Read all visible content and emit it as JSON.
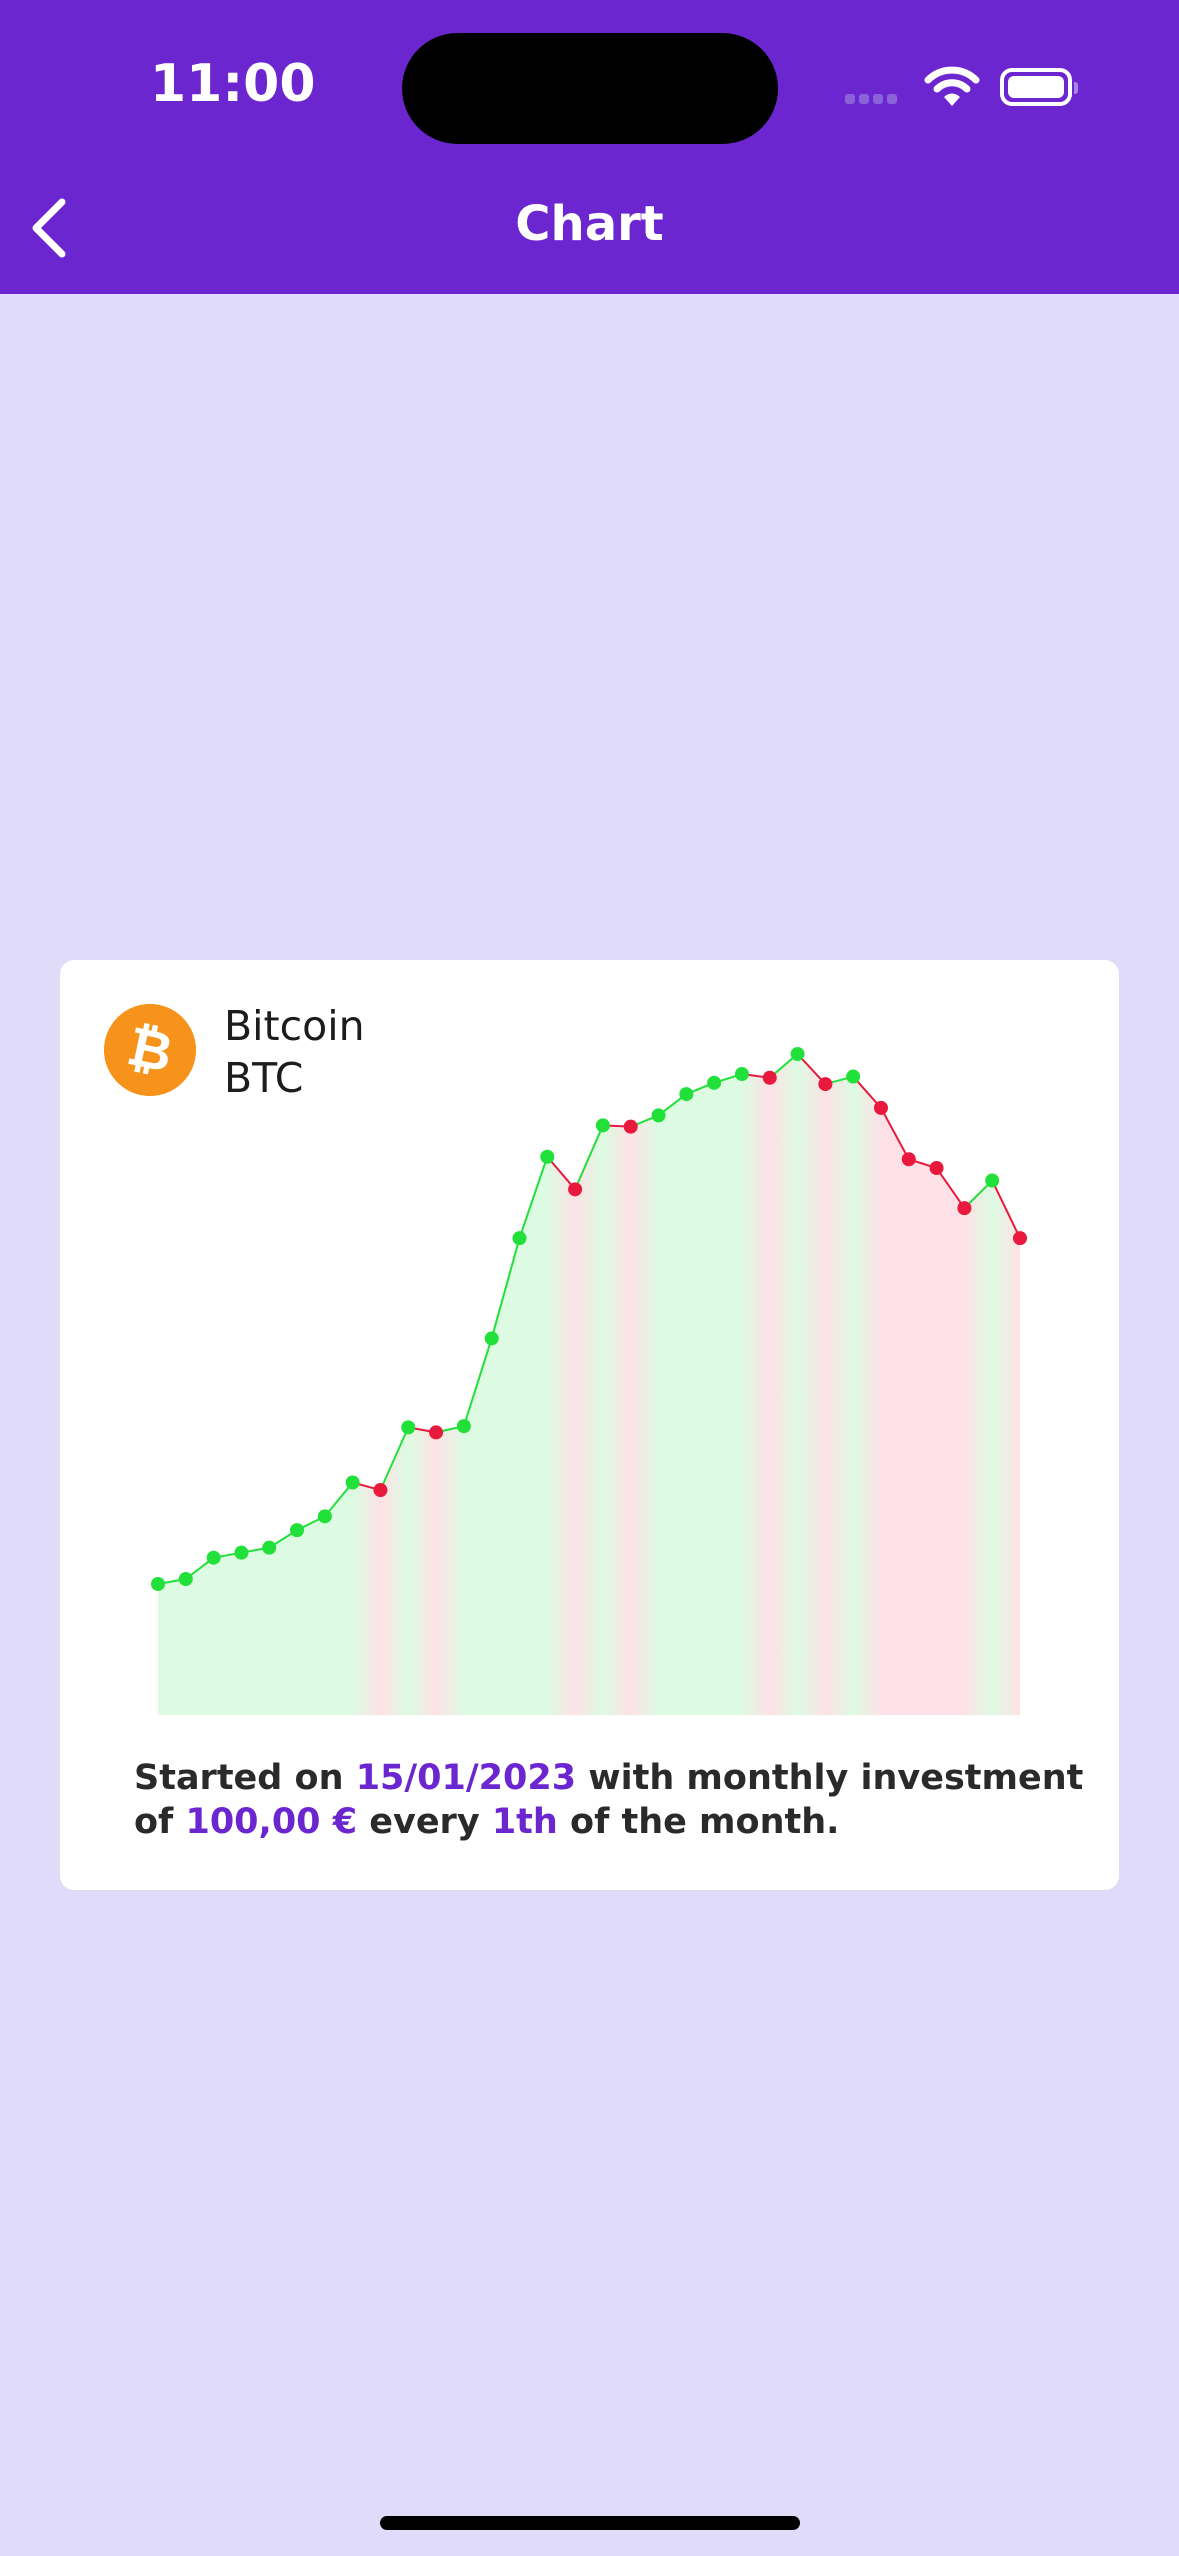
{
  "status_bar": {
    "time": "11:00"
  },
  "nav": {
    "title": "Chart"
  },
  "coin": {
    "name": "Bitcoin",
    "symbol": "BTC",
    "icon": "bitcoin-icon",
    "icon_color": "#f7931a"
  },
  "caption": {
    "part1": "Started on ",
    "start_date": "15/01/2023",
    "part2": " with monthly investment of ",
    "amount": "100,00 €",
    "part3": " every ",
    "day": "1th",
    "part4": " of the month."
  },
  "colors": {
    "header": "#6c26d0",
    "background": "#e0dbf8",
    "up": "#22e03a",
    "down": "#e8193c",
    "up_fill": "#ddfbe2",
    "down_fill": "#fde1e6",
    "accent": "#6c26d0"
  },
  "chart_data": {
    "type": "line",
    "x_axis": "hidden",
    "y_axis": "hidden",
    "grid": false,
    "values": [
      100,
      104,
      121,
      125,
      129,
      143,
      154,
      181,
      175,
      225,
      221,
      226,
      296,
      376,
      441,
      415,
      466,
      465,
      474,
      491,
      500,
      507,
      504,
      523,
      499,
      505,
      480,
      439,
      432,
      400,
      422,
      376
    ]
  }
}
